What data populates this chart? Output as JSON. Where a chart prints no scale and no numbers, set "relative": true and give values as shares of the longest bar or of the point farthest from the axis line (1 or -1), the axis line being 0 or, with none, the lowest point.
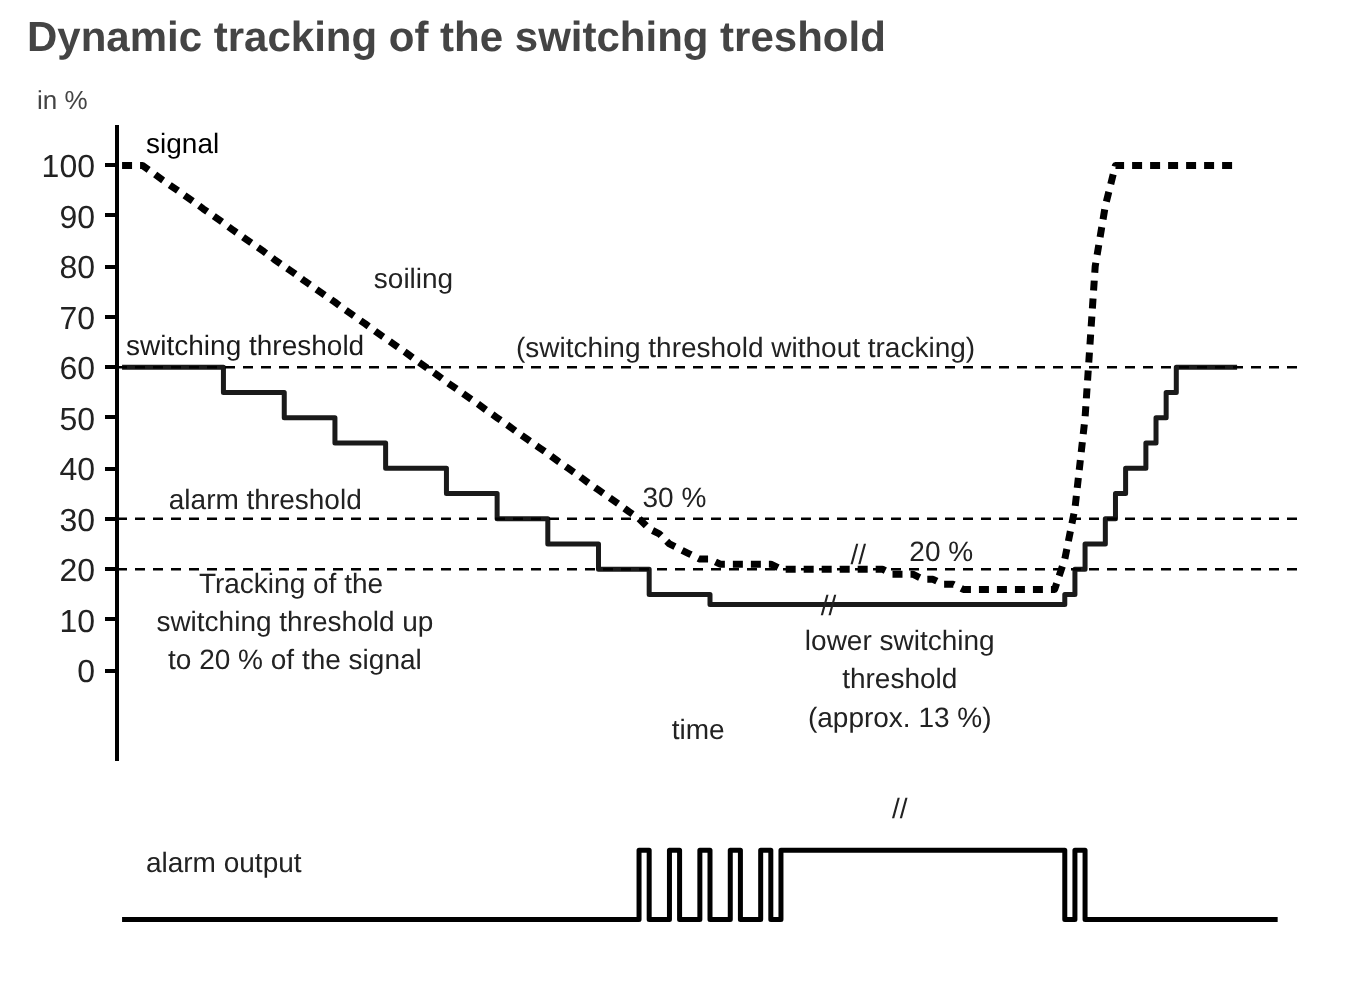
{
  "chart_data": [
    {
      "type": "line",
      "title": "Dynamic tracking of the switching treshold",
      "ylabel": "in %",
      "ylim": [
        -18,
        108
      ],
      "yticks": [
        0,
        10,
        20,
        30,
        40,
        50,
        60,
        70,
        80,
        90,
        100
      ],
      "tick_labels": "y",
      "grid": false,
      "categories": [
        null,
        null,
        null,
        null,
        null,
        null,
        null,
        null,
        null,
        null,
        null,
        null,
        null,
        null,
        null,
        null,
        null,
        null,
        null,
        null,
        null,
        null,
        null,
        null,
        null,
        null,
        null,
        null,
        null,
        null,
        null,
        null,
        null,
        null,
        null,
        null,
        null,
        null,
        null,
        null,
        null,
        null,
        null,
        null,
        null,
        null,
        null,
        null,
        null,
        null,
        null,
        null,
        null,
        null,
        null,
        null,
        null,
        null,
        null,
        null,
        null,
        null,
        null,
        null,
        null,
        null,
        null,
        null,
        null,
        null,
        null,
        null,
        null,
        null,
        null,
        null,
        null,
        null,
        null,
        null,
        null,
        null,
        null,
        null,
        null,
        null,
        null,
        null,
        null,
        null,
        null,
        null,
        null,
        null,
        null,
        null,
        null,
        null,
        null,
        null,
        null,
        null,
        null,
        null,
        null,
        null,
        null,
        null,
        null,
        null,
        null
      ],
      "series": [
        {
          "name": "signal",
          "type": "line",
          "line_style": "dashed",
          "color": "#000000",
          "values": [
            100,
            100,
            100,
            98.6,
            97.1,
            95.7,
            94.3,
            92.9,
            91.4,
            90,
            88.6,
            87.1,
            85.7,
            84.3,
            82.9,
            81.4,
            80,
            78.6,
            77.1,
            75.7,
            74.3,
            72.9,
            71.4,
            70,
            68.6,
            67.1,
            65.7,
            64.3,
            62.9,
            61.4,
            60,
            58.6,
            57.1,
            55.7,
            54.3,
            52.9,
            51.4,
            50,
            48.6,
            47.1,
            45.7,
            44.3,
            42.9,
            41.4,
            40,
            38.6,
            37.1,
            35.7,
            34.3,
            32.9,
            31.4,
            30,
            28,
            27,
            25,
            24,
            23,
            22,
            22,
            21,
            21,
            21,
            21,
            21,
            21,
            20,
            20,
            20,
            20,
            20,
            20,
            20,
            20,
            20,
            20,
            20,
            19,
            19,
            19,
            18,
            18,
            17,
            17,
            16,
            16,
            16,
            16,
            16,
            16,
            16,
            16,
            16,
            16,
            22,
            32,
            50,
            80,
            92,
            100,
            100,
            100,
            100,
            100,
            100,
            100,
            100,
            100,
            100,
            100,
            100,
            100
          ]
        },
        {
          "name": "switching threshold",
          "type": "step",
          "line_style": "solid",
          "color": "#1a1a1a",
          "values": [
            60,
            60,
            60,
            60,
            60,
            60,
            60,
            60,
            60,
            60,
            55,
            55,
            55,
            55,
            55,
            55,
            50,
            50,
            50,
            50,
            50,
            45,
            45,
            45,
            45,
            45,
            40,
            40,
            40,
            40,
            40,
            40,
            35,
            35,
            35,
            35,
            35,
            30,
            30,
            30,
            30,
            30,
            25,
            25,
            25,
            25,
            25,
            20,
            20,
            20,
            20,
            20,
            15,
            15,
            15,
            15,
            15,
            15,
            13,
            13,
            13,
            13,
            13,
            13,
            13,
            13,
            13,
            13,
            13,
            13,
            13,
            13,
            13,
            13,
            13,
            13,
            13,
            13,
            13,
            13,
            13,
            13,
            13,
            13,
            13,
            13,
            13,
            13,
            13,
            13,
            13,
            13,
            13,
            15,
            20,
            25,
            25,
            30,
            35,
            40,
            40,
            45,
            50,
            55,
            60,
            60,
            60,
            60,
            60,
            60,
            60
          ]
        }
      ],
      "ref_lines": [
        {
          "axis": "y",
          "value": 60,
          "label": "(switching threshold without tracking)",
          "line_style": "dashed"
        },
        {
          "axis": "y",
          "value": 30,
          "label": "alarm threshold",
          "line_style": "dashed"
        },
        {
          "axis": "y",
          "value": 20,
          "line_style": "dashed"
        }
      ],
      "annotations": [
        "soiling",
        "Tracking  of the\nswitching threshold up\nto 20 % of the signal",
        "30 %",
        "20 %",
        "//",
        "//",
        "lower switching\nthreshold\n(approx. 13 %)",
        "time"
      ]
    },
    {
      "type": "step",
      "relative": true,
      "tick_labels": false,
      "grid": false,
      "categories": [
        null,
        null,
        null,
        null,
        null,
        null,
        null,
        null,
        null,
        null,
        null,
        null,
        null,
        null,
        null,
        null,
        null,
        null,
        null,
        null,
        null,
        null,
        null,
        null,
        null,
        null,
        null,
        null,
        null,
        null,
        null,
        null,
        null,
        null,
        null,
        null,
        null,
        null,
        null,
        null,
        null,
        null,
        null,
        null,
        null,
        null,
        null,
        null,
        null,
        null,
        null,
        null,
        null,
        null,
        null,
        null,
        null,
        null,
        null,
        null,
        null,
        null,
        null,
        null,
        null,
        null,
        null,
        null,
        null,
        null,
        null,
        null,
        null,
        null,
        null,
        null,
        null,
        null,
        null,
        null,
        null,
        null,
        null,
        null,
        null,
        null,
        null,
        null,
        null,
        null,
        null,
        null,
        null,
        null,
        null,
        null,
        null,
        null,
        null,
        null,
        null,
        null,
        null,
        null,
        null,
        null,
        null,
        null,
        null,
        null,
        null,
        null,
        null,
        null,
        null
      ],
      "series": [
        {
          "color": "#000000",
          "values": [
            0,
            0,
            0,
            0,
            0,
            0,
            0,
            0,
            0,
            0,
            0,
            0,
            0,
            0,
            0,
            0,
            0,
            0,
            0,
            0,
            0,
            0,
            0,
            0,
            0,
            0,
            0,
            0,
            0,
            0,
            0,
            0,
            0,
            0,
            0,
            0,
            0,
            0,
            0,
            0,
            0,
            0,
            0,
            0,
            0,
            0,
            0,
            0,
            0,
            0,
            0,
            1,
            0,
            0,
            1,
            0,
            0,
            1,
            0,
            0,
            1,
            0,
            0,
            1,
            0,
            1,
            1,
            1,
            1,
            1,
            1,
            1,
            1,
            1,
            1,
            1,
            1,
            1,
            1,
            1,
            1,
            1,
            1,
            1,
            1,
            1,
            1,
            1,
            1,
            1,
            1,
            1,
            1,
            0,
            1,
            0,
            0,
            0,
            0,
            0,
            0,
            0,
            0,
            0,
            0,
            0,
            0,
            0,
            0,
            0,
            0,
            0,
            0,
            0,
            0
          ]
        }
      ],
      "annotations": [
        "alarm output",
        "//"
      ]
    }
  ]
}
